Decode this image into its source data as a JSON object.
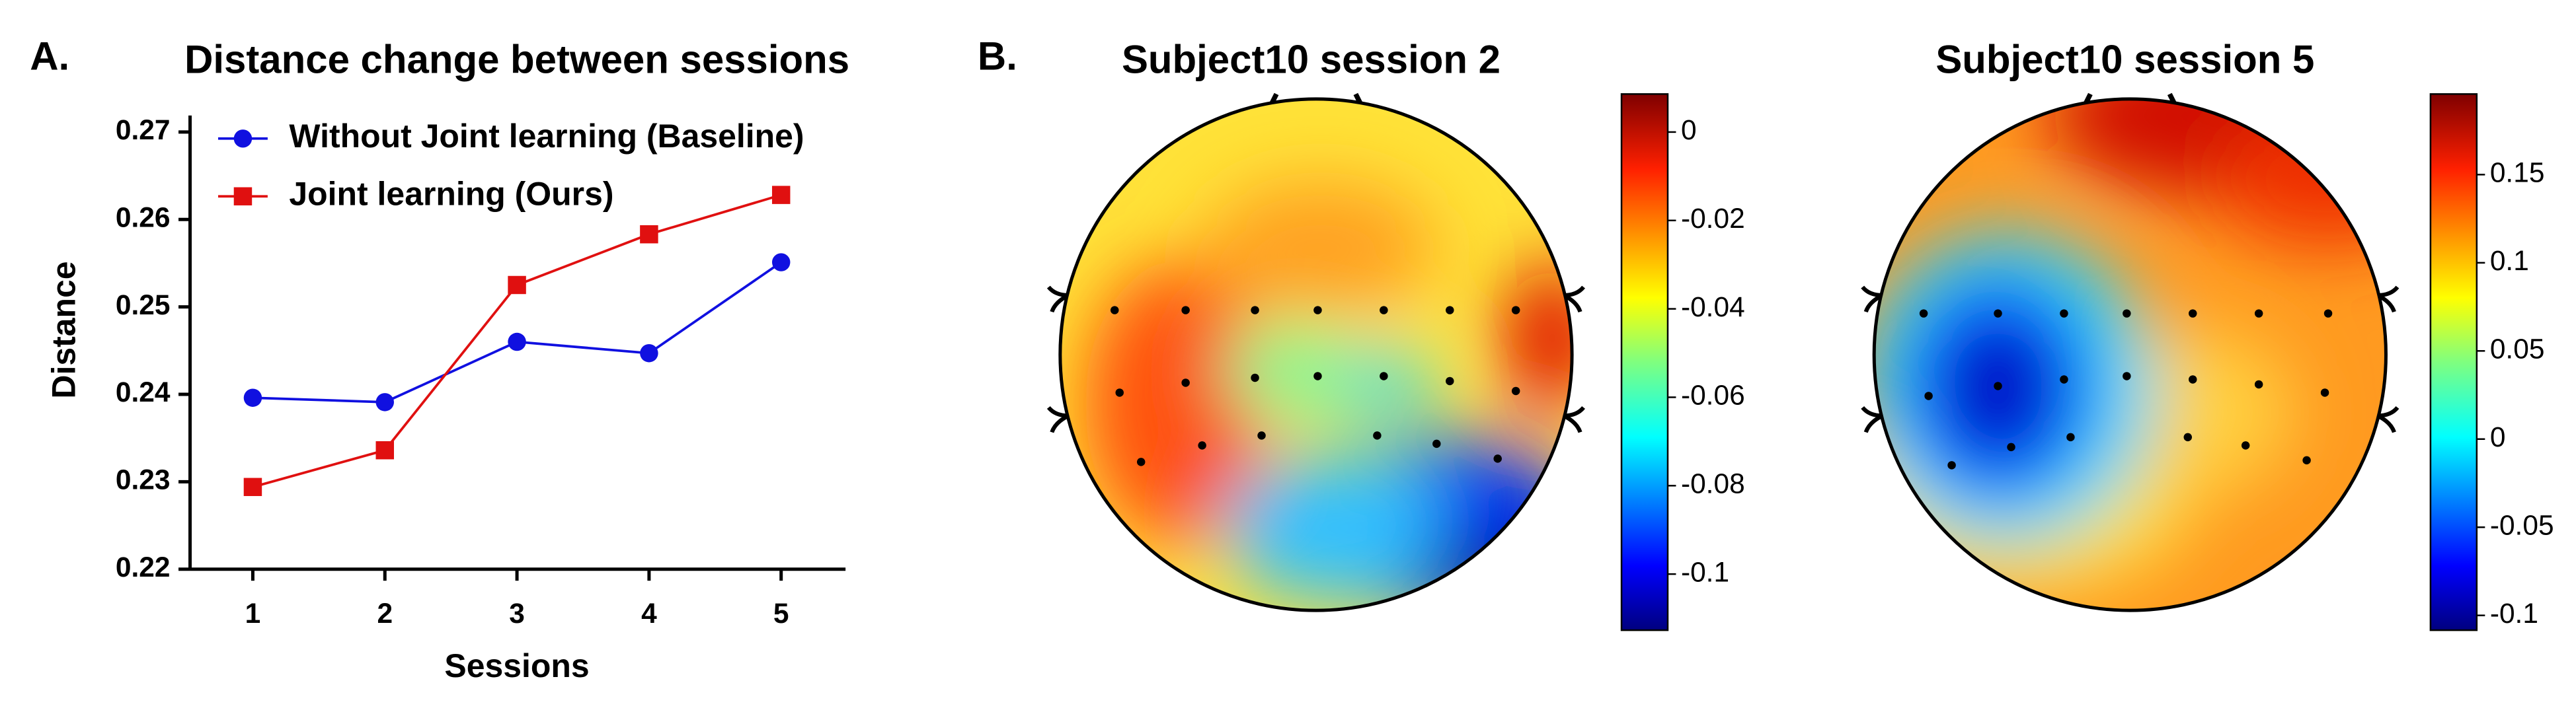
{
  "chart_data": [
    {
      "type": "line",
      "label": "A.",
      "title": "Distance change between sessions",
      "x_label": "Sessions",
      "y_label": "Distance",
      "categories": [
        "1",
        "2",
        "3",
        "4",
        "5"
      ],
      "series": [
        {
          "name": "Without Joint learning (Baseline)",
          "color": "#1010e0",
          "marker": "circle",
          "values": [
            0.2396,
            0.2391,
            0.246,
            0.2447,
            0.2551
          ]
        },
        {
          "name": "Joint learning (Ours)",
          "color": "#e01010",
          "marker": "square",
          "values": [
            0.2294,
            0.2336,
            0.2525,
            0.2583,
            0.2628
          ]
        }
      ],
      "ylim": [
        0.22,
        0.27
      ],
      "yticks": [
        0.22,
        0.23,
        0.24,
        0.25,
        0.26,
        0.27
      ],
      "legend": "upper left"
    },
    {
      "type": "topomap",
      "label": "B.",
      "title": "Subject10 session 2",
      "colormap": "jet",
      "clim": [
        -0.1127,
        0.0086
      ],
      "cticks": [
        -0.1,
        -0.08,
        -0.06,
        -0.04,
        -0.02,
        0
      ]
    },
    {
      "type": "topomap",
      "title": "Subject10 session 5",
      "colormap": "jet",
      "clim": [
        -0.1084,
        0.1957
      ],
      "cticks": [
        -0.1,
        -0.05,
        0,
        0.05,
        0.1,
        0.15
      ]
    }
  ]
}
